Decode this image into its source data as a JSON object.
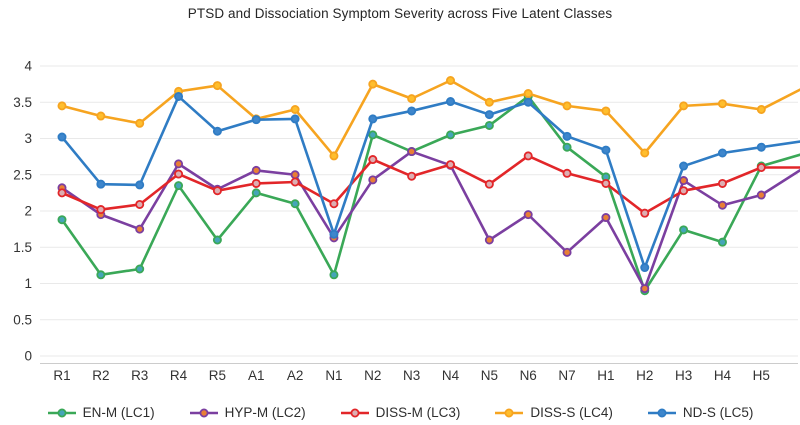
{
  "chart_data": {
    "type": "line",
    "title": "PTSD and Dissociation Symptom Severity across Five Latent Classes",
    "xlabel": "",
    "ylabel": "",
    "ylim": [
      0,
      4
    ],
    "y_ticks": [
      "0",
      "0.5",
      "1",
      "1.5",
      "2",
      "2.5",
      "3",
      "3.5",
      "4"
    ],
    "grid": "horizontal-only",
    "legend_position": "bottom",
    "categories": [
      "R1",
      "R2",
      "R3",
      "R4",
      "R5",
      "A1",
      "A2",
      "N1",
      "N2",
      "N3",
      "N4",
      "N5",
      "N6",
      "N7",
      "H1",
      "H2",
      "H3",
      "H4",
      "H5"
    ],
    "series": [
      {
        "name": "EN-M (LC1)",
        "line_color": "#3AA857",
        "marker_fill": "#45A5B8",
        "values": [
          1.88,
          1.12,
          1.2,
          2.35,
          1.6,
          2.25,
          2.1,
          1.12,
          3.05,
          2.82,
          3.05,
          3.18,
          3.58,
          2.88,
          2.47,
          0.9,
          1.74,
          1.57,
          2.62
        ],
        "clipped_right_edge_value": 2.78
      },
      {
        "name": "HYP-M (LC2)",
        "line_color": "#7B3FA0",
        "marker_fill": "#E87F35",
        "values": [
          2.32,
          1.95,
          1.75,
          2.65,
          2.3,
          2.56,
          2.5,
          1.63,
          2.43,
          2.82,
          2.63,
          1.6,
          1.95,
          1.43,
          1.91,
          0.93,
          2.42,
          2.08,
          2.22
        ],
        "clipped_right_edge_value": 2.57
      },
      {
        "name": "DISS-M (LC3)",
        "line_color": "#E22629",
        "marker_fill": "#DDAEB2",
        "values": [
          2.25,
          2.02,
          2.09,
          2.51,
          2.28,
          2.38,
          2.4,
          2.1,
          2.71,
          2.48,
          2.64,
          2.37,
          2.76,
          2.52,
          2.38,
          1.97,
          2.28,
          2.38,
          2.6
        ],
        "clipped_right_edge_value": 2.6
      },
      {
        "name": "DISS-S (LC4)",
        "line_color": "#F6A420",
        "marker_fill": "#FFBE2D",
        "values": [
          3.45,
          3.31,
          3.21,
          3.65,
          3.73,
          3.27,
          3.4,
          2.76,
          3.75,
          3.55,
          3.8,
          3.5,
          3.62,
          3.45,
          3.38,
          2.8,
          3.45,
          3.48,
          3.4
        ],
        "clipped_right_edge_value": 3.68
      },
      {
        "name": "ND-S (LC5)",
        "line_color": "#2F7CC4",
        "marker_fill": "#3E86CC",
        "values": [
          3.02,
          2.37,
          2.36,
          3.58,
          3.1,
          3.26,
          3.27,
          1.68,
          3.27,
          3.38,
          3.51,
          3.33,
          3.5,
          3.03,
          2.84,
          1.22,
          2.62,
          2.8,
          2.88
        ],
        "clipped_right_edge_value": 2.96
      }
    ],
    "style": {
      "gridline_color": "#e9e9e9",
      "axis_line_color": "#cccccc",
      "background": "#ffffff"
    }
  }
}
